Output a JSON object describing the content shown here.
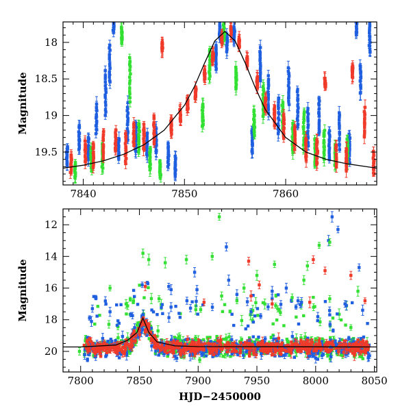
{
  "colors": {
    "blue": "#1f5fe0",
    "green": "#33e033",
    "red": "#f03a2a",
    "model": "#000000"
  },
  "chart_data": [
    {
      "type": "scatter",
      "title": "",
      "xlabel": "",
      "ylabel": "Magnitude",
      "xlim": [
        7838,
        7869
      ],
      "ylim": [
        19.95,
        17.72
      ],
      "y_inverted": true,
      "x_ticks": [
        7840,
        7850,
        7860
      ],
      "y_ticks": [
        18,
        18.5,
        19,
        19.5
      ],
      "x_tick_labels": [
        "7840",
        "7850",
        "7860"
      ],
      "y_tick_labels": [
        "18",
        "18.5",
        "19",
        "19.5"
      ],
      "model_curve": {
        "description": "black microlensing model curve",
        "x": [
          7838,
          7840,
          7842,
          7844,
          7846,
          7848,
          7850,
          7851,
          7852,
          7853,
          7854,
          7855,
          7856,
          7857,
          7858,
          7860,
          7862,
          7864,
          7866,
          7869
        ],
        "y": [
          19.72,
          19.68,
          19.62,
          19.53,
          19.4,
          19.2,
          18.86,
          18.6,
          18.28,
          17.98,
          17.85,
          17.98,
          18.28,
          18.62,
          18.92,
          19.3,
          19.5,
          19.6,
          19.66,
          19.72
        ]
      },
      "series": [
        {
          "color": "blue",
          "x": [
            7838.4,
            7839.6,
            7840.5,
            7841.3,
            7842.2,
            7842.6,
            7843.0,
            7843.5,
            7844.4,
            7845.2,
            7846.3,
            7847.2,
            7848.4,
            7849.1,
            7853.1,
            7853.5,
            7854.2,
            7854.9,
            7856.7,
            7857.5,
            7858.3,
            7859.3,
            7860.3,
            7861.2,
            7862.2,
            7863.3,
            7864.3,
            7865.3,
            7866.3,
            7867.0,
            7867.4,
            7868.3
          ],
          "y": [
            19.55,
            19.3,
            19.45,
            19.05,
            18.7,
            18.3,
            17.75,
            19.45,
            19.1,
            19.3,
            19.4,
            19.35,
            19.55,
            19.7,
            18.2,
            17.85,
            18.0,
            17.9,
            19.35,
            18.3,
            18.7,
            19.0,
            18.6,
            18.9,
            19.15,
            19.0,
            19.4,
            19.2,
            19.45,
            17.75,
            18.5,
            17.95
          ],
          "spread": [
            0.25,
            0.35,
            0.3,
            0.4,
            0.6,
            0.5,
            0.2,
            0.3,
            0.5,
            0.4,
            0.3,
            0.35,
            0.3,
            0.25,
            0.3,
            0.2,
            0.25,
            0.2,
            0.3,
            0.45,
            0.5,
            0.5,
            0.5,
            0.5,
            0.5,
            0.5,
            0.4,
            0.5,
            0.4,
            0.3,
            0.4,
            0.4
          ]
        },
        {
          "color": "green",
          "x": [
            7839.2,
            7840.8,
            7841.9,
            7843.8,
            7844.6,
            7845.5,
            7846.6,
            7847.6,
            7851.8,
            7852.5,
            7853.9,
            7855.1,
            7856.9,
            7857.8,
            7859.7,
            7860.7,
            7861.8,
            7862.9,
            7863.8,
            7864.9,
            7866.1
          ],
          "y": [
            19.75,
            19.6,
            19.55,
            17.9,
            18.5,
            19.3,
            19.6,
            19.75,
            19.0,
            18.3,
            17.85,
            18.5,
            19.1,
            18.8,
            19.0,
            19.3,
            19.2,
            19.5,
            19.4,
            19.55,
            19.5
          ],
          "spread": [
            0.2,
            0.3,
            0.35,
            0.2,
            0.6,
            0.4,
            0.3,
            0.2,
            0.3,
            0.4,
            0.2,
            0.3,
            0.35,
            0.4,
            0.35,
            0.4,
            0.5,
            0.35,
            0.4,
            0.3,
            0.35
          ]
        },
        {
          "color": "red",
          "x": [
            7838.8,
            7840.2,
            7841.0,
            7842.0,
            7843.2,
            7844.2,
            7845.0,
            7846.0,
            7847.0,
            7847.8,
            7848.7,
            7849.6,
            7850.3,
            7851.1,
            7852.0,
            7852.8,
            7853.7,
            7854.6,
            7855.4,
            7856.2,
            7857.2,
            7858.0,
            7858.9,
            7859.8,
            7860.9,
            7862.0,
            7863.1,
            7863.9,
            7865.0,
            7866.0,
            7866.6,
            7867.8,
            7868.7
          ],
          "y": [
            19.65,
            19.5,
            19.55,
            19.4,
            19.35,
            19.45,
            19.25,
            19.3,
            19.2,
            18.05,
            19.15,
            19.0,
            18.85,
            18.7,
            18.45,
            18.2,
            17.95,
            17.85,
            18.0,
            18.25,
            18.55,
            18.85,
            19.0,
            19.15,
            19.3,
            19.45,
            19.5,
            18.55,
            19.55,
            19.6,
            18.4,
            19.1,
            19.65
          ],
          "spread": [
            0.25,
            0.3,
            0.35,
            0.35,
            0.3,
            0.4,
            0.3,
            0.35,
            0.4,
            0.1,
            0.2,
            0.15,
            0.15,
            0.15,
            0.12,
            0.12,
            0.1,
            0.1,
            0.1,
            0.12,
            0.15,
            0.2,
            0.25,
            0.3,
            0.3,
            0.3,
            0.35,
            0.1,
            0.3,
            0.3,
            0.15,
            0.4,
            0.3
          ]
        }
      ]
    },
    {
      "type": "scatter",
      "title": "",
      "xlabel": "HJD−2450000",
      "ylabel": "Magnitude",
      "xlim": [
        7785,
        8052
      ],
      "ylim": [
        21.3,
        11.0
      ],
      "y_inverted": true,
      "x_ticks": [
        7800,
        7850,
        7900,
        7950,
        8000,
        8050
      ],
      "y_ticks": [
        12,
        14,
        16,
        18,
        20
      ],
      "x_tick_labels": [
        "7800",
        "7850",
        "7900",
        "7950",
        "8000",
        "8050"
      ],
      "y_tick_labels": [
        "12",
        "14",
        "16",
        "18",
        "20"
      ],
      "model_curve": {
        "description": "black model line",
        "x": [
          7785,
          7800,
          7830,
          7840,
          7848,
          7853,
          7858,
          7865,
          7880,
          7900,
          8052
        ],
        "y": [
          19.72,
          19.72,
          19.6,
          19.3,
          18.8,
          17.9,
          18.8,
          19.4,
          19.65,
          19.7,
          19.72
        ]
      },
      "baseline_band": {
        "x_start": 7803,
        "x_end": 8046,
        "y_center": 19.75,
        "scatter": 0.9
      },
      "series": [
        {
          "color": "blue",
          "x": [
            7877,
            7897,
            7924,
            7926,
            8014,
            8019,
            8011,
            8037,
            7899,
            7875,
            7933,
            7810,
            7825,
            7963,
            7975,
            7988,
            8025,
            8040,
            7985,
            7945
          ],
          "y": [
            16.1,
            15.0,
            13.4,
            15.5,
            11.5,
            12.3,
            13.0,
            14.7,
            16.1,
            15.9,
            16.4,
            17.3,
            17.5,
            16.2,
            16.0,
            16.9,
            17.0,
            17.4,
            16.8,
            17.5
          ]
        },
        {
          "color": "green",
          "x": [
            7918,
            7853,
            7872,
            7890,
            7912,
            7920,
            7939,
            7965,
            8003,
            8012,
            7933,
            7825,
            7858,
            7950,
            8036,
            7980,
            7799,
            7990,
            7993
          ],
          "y": [
            11.5,
            13.8,
            14.4,
            14.2,
            14.0,
            16.5,
            16.0,
            14.5,
            13.3,
            13.1,
            16.8,
            16.0,
            14.2,
            15.2,
            16.2,
            16.6,
            20.0,
            15.5,
            14.6
          ],
          "seed_points": true
        },
        {
          "color": "red",
          "x": [
            7943,
            7952,
            7998,
            8008,
            8030,
            8042,
            7855,
            7945,
            7905,
            7963,
            7995
          ],
          "y": [
            14.3,
            15.8,
            14.2,
            14.9,
            15.2,
            16.8,
            15.9,
            16.5,
            16.9,
            17.0,
            16.9
          ]
        }
      ]
    }
  ]
}
